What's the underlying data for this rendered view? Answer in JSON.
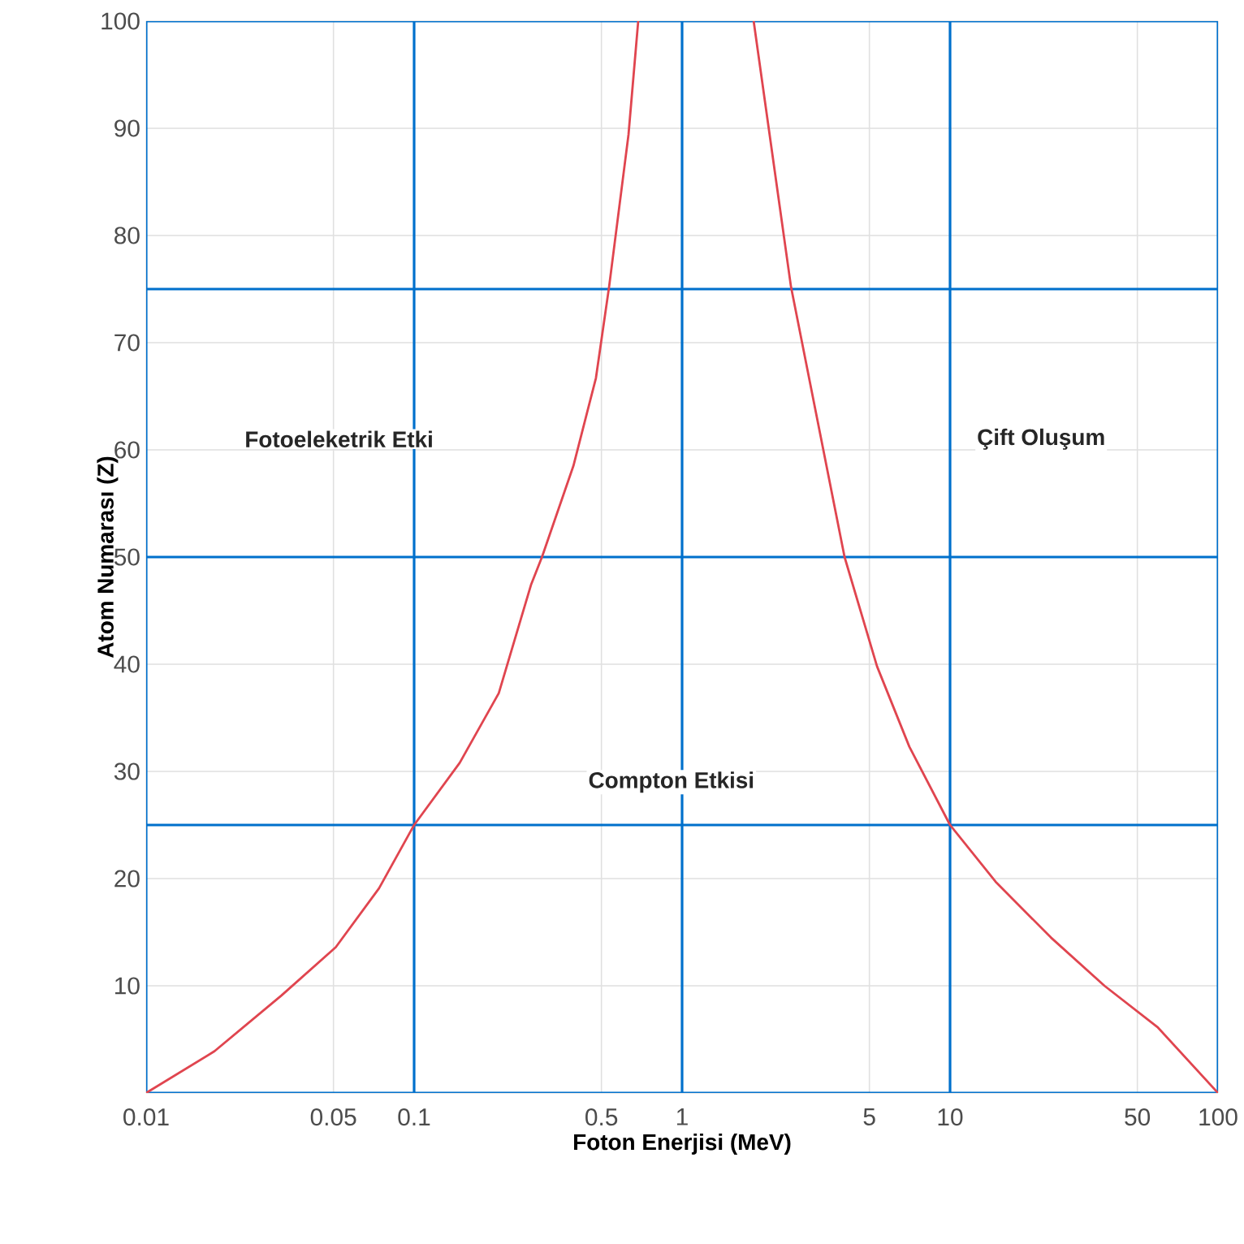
{
  "chart_data": {
    "type": "line",
    "xlabel": "Foton Enerjisi (MeV)",
    "ylabel": "Atom Numarası (Z)",
    "log": "x",
    "grid": true,
    "marker": "none",
    "line_style": "solid",
    "xlim": [
      0.01,
      100
    ],
    "ylim": [
      0,
      100
    ],
    "xticks": [
      0.01,
      0.05,
      0.1,
      0.5,
      1,
      5,
      10,
      50,
      100
    ],
    "yticks": [
      {
        "value": 0,
        "label": null
      },
      10,
      20,
      {
        "value": 25,
        "label": null
      },
      30,
      40,
      50,
      60,
      70,
      {
        "value": 75,
        "label": null
      },
      80,
      90,
      100
    ],
    "series": [
      {
        "color": "#e0454f",
        "x": [
          0.01,
          0.018,
          0.032,
          0.051,
          0.074,
          0.1,
          0.148,
          0.207,
          0.273,
          0.3,
          0.393,
          0.477,
          0.534,
          0.631,
          0.686
        ],
        "values": [
          0,
          3.9,
          9.1,
          13.6,
          19.1,
          25,
          30.8,
          37.3,
          47.4,
          50,
          58.5,
          66.7,
          75.2,
          89.4,
          100
        ]
      },
      {
        "color": "#e0454f",
        "x": [
          1.85,
          2.55,
          4.04,
          5.34,
          7.05,
          10,
          14.8,
          23.8,
          37.7,
          59.7,
          100
        ],
        "values": [
          100,
          75.2,
          50,
          39.8,
          32.3,
          25,
          19.7,
          14.5,
          10,
          6.1,
          0
        ]
      }
    ],
    "annotations": [
      "Fotoeleketrik Etki",
      "Compton Etkisi",
      "Çift Oluşum"
    ]
  }
}
